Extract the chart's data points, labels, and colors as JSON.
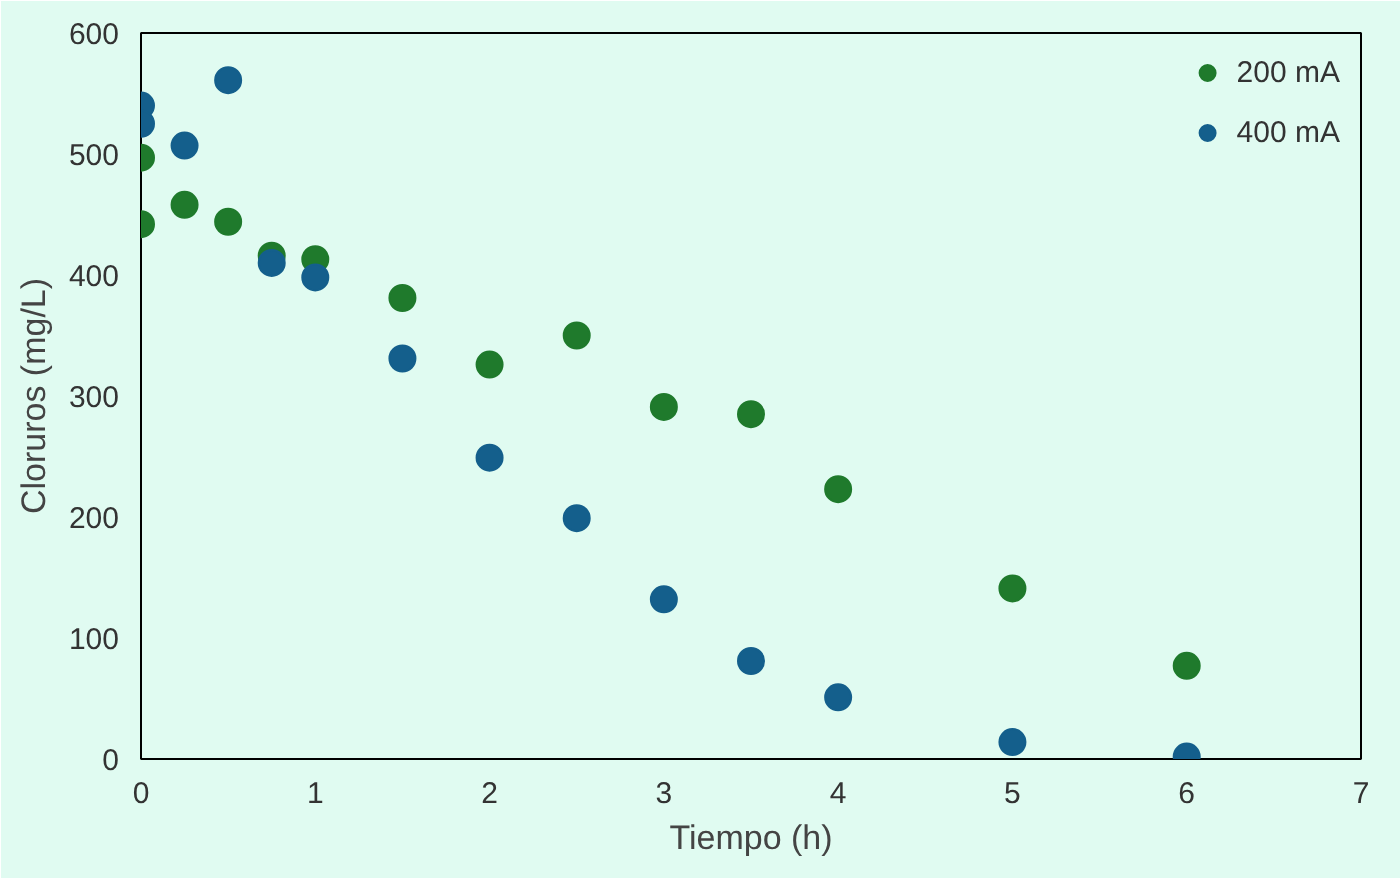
{
  "chart_data": {
    "type": "scatter",
    "xlabel": "Tiempo (h)",
    "ylabel": "Cloruros (mg/L)",
    "xlim": [
      0,
      7
    ],
    "xticks": [
      0,
      1,
      2,
      3,
      4,
      5,
      6,
      7
    ],
    "ylim": [
      0,
      600
    ],
    "yticks": [
      0,
      100,
      200,
      300,
      400,
      500,
      600
    ],
    "grid": false,
    "legend": "top right",
    "marker": "circle",
    "series": [
      {
        "name": "200 mA",
        "color": "#1f7a2c",
        "x": [
          0,
          0,
          0.25,
          0.5,
          0.75,
          1,
          1.5,
          2,
          2.5,
          3,
          3.5,
          4,
          5,
          6
        ],
        "values": [
          442,
          497,
          458,
          444,
          416,
          413,
          381,
          326,
          350,
          291,
          285,
          223,
          141,
          77
        ]
      },
      {
        "name": "400 mA",
        "color": "#145f8c",
        "x": [
          0,
          0,
          0.25,
          0.5,
          0.75,
          1,
          1.5,
          2,
          2.5,
          3,
          3.5,
          4,
          5,
          6
        ],
        "values": [
          540,
          525,
          507,
          561,
          410,
          398,
          331,
          249,
          199,
          132,
          81,
          51,
          14,
          2
        ]
      }
    ]
  }
}
